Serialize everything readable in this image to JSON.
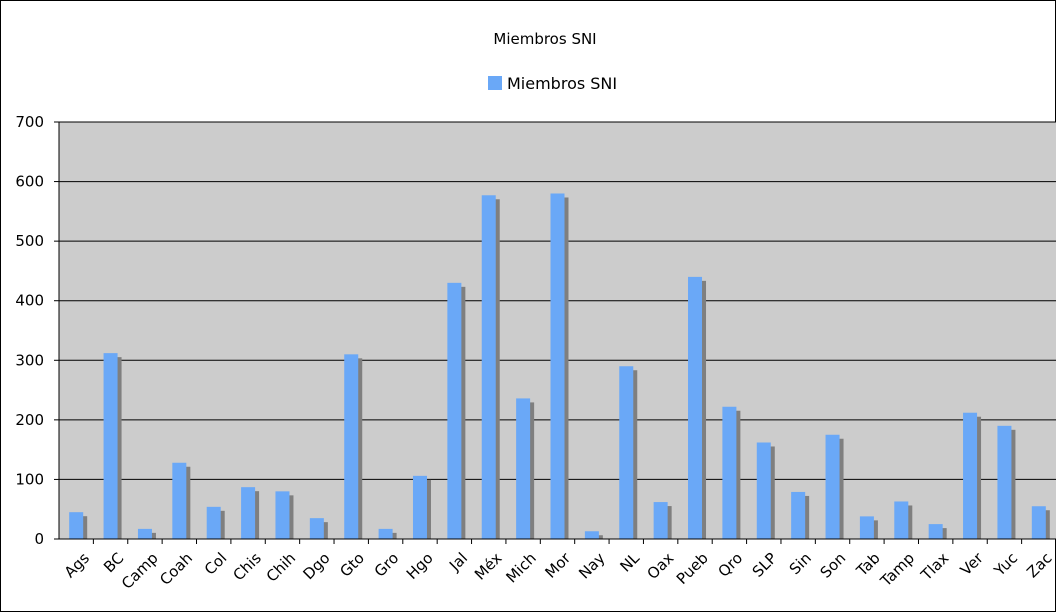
{
  "chart_data": {
    "type": "bar",
    "title": "Miembros SNI",
    "legend": {
      "placement": "top",
      "entries": [
        "Miembros SNI"
      ]
    },
    "xlabel": "",
    "ylabel": "",
    "ylim": [
      0,
      700
    ],
    "yticks": [
      0,
      100,
      200,
      300,
      400,
      500,
      600,
      700
    ],
    "grid": true,
    "categories": [
      "Ags",
      "BC",
      "Camp",
      "Coah",
      "Col",
      "Chis",
      "Chih",
      "Dgo",
      "Gto",
      "Gro",
      "Hgo",
      "Jal",
      "Méx",
      "Mich",
      "Mor",
      "Nay",
      "NL",
      "Oax",
      "Pueb",
      "Qro",
      "SLP",
      "Sin",
      "Son",
      "Tab",
      "Tamp",
      "Tlax",
      "Ver",
      "Yuc",
      "Zac"
    ],
    "series": [
      {
        "name": "Miembros SNI",
        "color": "#6aa8f7",
        "values": [
          45,
          312,
          17,
          128,
          54,
          87,
          80,
          35,
          310,
          17,
          106,
          430,
          577,
          236,
          580,
          13,
          290,
          62,
          440,
          222,
          162,
          79,
          175,
          38,
          63,
          25,
          212,
          190,
          55
        ]
      }
    ],
    "colors": {
      "plot_background": "#cccccc",
      "shadow": "#7f7f7f",
      "grid": "#000000"
    }
  }
}
